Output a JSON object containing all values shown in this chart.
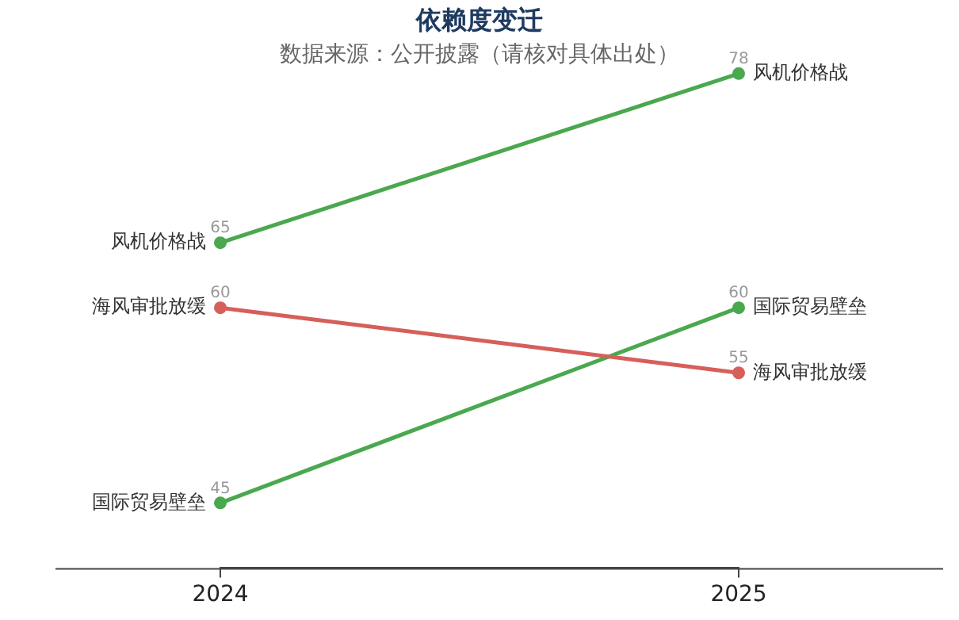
{
  "chart_data": {
    "type": "line",
    "title": "依赖度变迁",
    "subtitle": "数据来源：公开披露（请核对具体出处）",
    "categories": [
      "2024",
      "2025"
    ],
    "series": [
      {
        "name": "风机价格战",
        "color": "#4aa84f",
        "values": [
          65,
          78
        ]
      },
      {
        "name": "海风审批放缓",
        "color": "#d65f5a",
        "values": [
          60,
          55
        ]
      },
      {
        "name": "国际贸易壁垒",
        "color": "#4aa84f",
        "values": [
          45,
          60
        ]
      }
    ],
    "data_labels": true,
    "legend": false,
    "grid": false,
    "marker": "circle",
    "line_style": "solid",
    "tick_labels": "x"
  }
}
